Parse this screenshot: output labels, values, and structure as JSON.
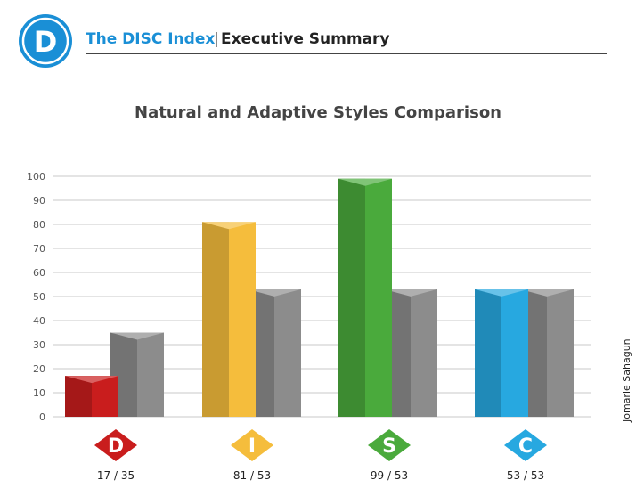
{
  "header": {
    "logo_letter": "D",
    "brand": "The DISC Index",
    "separator": "|",
    "subtitle": "Executive Summary"
  },
  "author": "Jomarie Sahagun",
  "colors": {
    "brand_blue": "#1a8fd6",
    "adaptive_gray": "#8c8c8c"
  },
  "chart_data": {
    "type": "bar",
    "title": "Natural and Adaptive Styles Comparison",
    "categories": [
      "D",
      "I",
      "S",
      "C"
    ],
    "series": [
      {
        "values": [
          17,
          81,
          99,
          53
        ],
        "colors": [
          "#c91d1d",
          "#f5bd3c",
          "#4aaa3c",
          "#27a8e0"
        ]
      },
      {
        "values": [
          35,
          53,
          53,
          53
        ],
        "colors": [
          "#8c8c8c",
          "#8c8c8c",
          "#8c8c8c",
          "#8c8c8c"
        ]
      }
    ],
    "value_labels": [
      "17 / 35",
      "81 / 53",
      "99 / 53",
      "53 / 53"
    ],
    "category_colors": [
      "#c91d1d",
      "#f5bd3c",
      "#4aaa3c",
      "#27a8e0"
    ],
    "ylim": [
      0,
      100
    ],
    "yticks": [
      0,
      10,
      20,
      30,
      40,
      50,
      60,
      70,
      80,
      90,
      100
    ],
    "grid": true,
    "legend": "none"
  }
}
